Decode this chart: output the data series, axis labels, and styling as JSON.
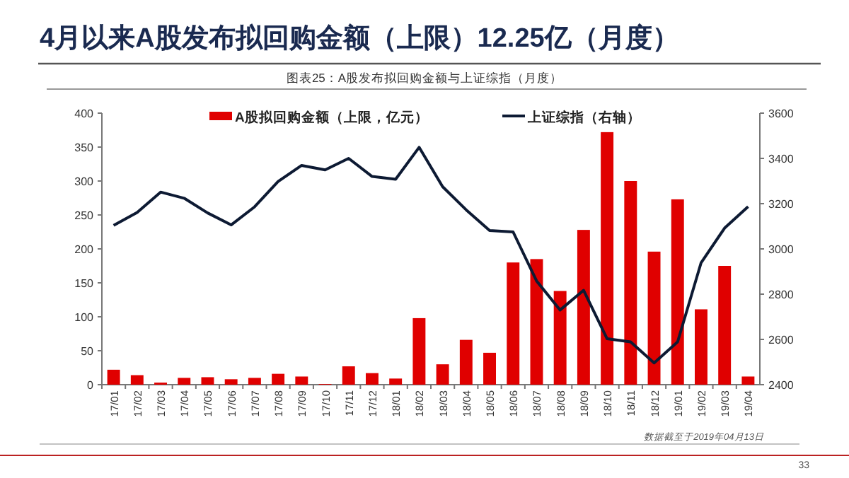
{
  "chart_data": {
    "type": "bar",
    "title": "4月以来A股发布拟回购金额（上限）12.25亿（月度）",
    "subtitle": "图表25：A股发布拟回购金额与上证综指（月度）",
    "categories": [
      "17/01",
      "17/02",
      "17/03",
      "17/04",
      "17/05",
      "17/06",
      "17/07",
      "17/08",
      "17/09",
      "17/10",
      "17/11",
      "17/12",
      "18/01",
      "18/02",
      "18/03",
      "18/04",
      "18/05",
      "18/06",
      "18/07",
      "18/08",
      "18/09",
      "18/10",
      "18/11",
      "18/12",
      "19/01",
      "19/02",
      "19/03",
      "19/04"
    ],
    "series": [
      {
        "name": "A股拟回购金额（上限，亿元）",
        "color": "#e00000",
        "values": [
          22,
          14,
          3,
          10,
          11,
          8,
          10,
          16,
          12,
          1,
          27,
          17,
          9,
          98,
          30,
          66,
          47,
          180,
          185,
          138,
          228,
          372,
          300,
          196,
          273,
          111,
          175,
          12
        ]
      },
      {
        "name": "上证综指（右轴）",
        "type": "line",
        "axis": "y2",
        "color": "#0d1a33",
        "values": [
          3104,
          3161,
          3251,
          3224,
          3159,
          3106,
          3186,
          3298,
          3369,
          3349,
          3400,
          3320,
          3308,
          3449,
          3275,
          3173,
          3081,
          3075,
          2858,
          2730,
          2817,
          2603,
          2589,
          2496,
          2589,
          2939,
          3092,
          3187
        ]
      }
    ],
    "ylim": [
      0,
      400
    ],
    "yticks": [
      0,
      50,
      100,
      150,
      200,
      250,
      300,
      350,
      400
    ],
    "y2lim": [
      2400,
      3600
    ],
    "y2ticks": [
      2400,
      2600,
      2800,
      3000,
      3200,
      3400,
      3600
    ],
    "legend": "top",
    "grid": false,
    "annotations": [
      "数据截至于2019年04月13日",
      "33"
    ]
  }
}
